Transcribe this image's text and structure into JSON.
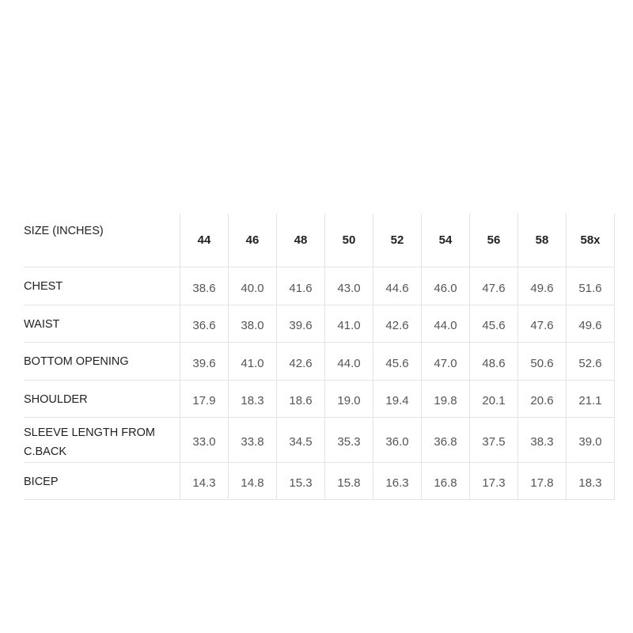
{
  "size_chart": {
    "header_label": "SIZE (INCHES)",
    "sizes": [
      "44",
      "46",
      "48",
      "50",
      "52",
      "54",
      "56",
      "58",
      "58x"
    ],
    "rows": [
      {
        "label": "CHEST",
        "values": [
          "38.6",
          "40.0",
          "41.6",
          "43.0",
          "44.6",
          "46.0",
          "47.6",
          "49.6",
          "51.6"
        ]
      },
      {
        "label": "WAIST",
        "values": [
          "36.6",
          "38.0",
          "39.6",
          "41.0",
          "42.6",
          "44.0",
          "45.6",
          "47.6",
          "49.6"
        ]
      },
      {
        "label": "BOTTOM OPENING",
        "values": [
          "39.6",
          "41.0",
          "42.6",
          "44.0",
          "45.6",
          "47.0",
          "48.6",
          "50.6",
          "52.6"
        ]
      },
      {
        "label": "SHOULDER",
        "values": [
          "17.9",
          "18.3",
          "18.6",
          "19.0",
          "19.4",
          "19.8",
          "20.1",
          "20.6",
          "21.1"
        ]
      },
      {
        "label": "SLEEVE LENGTH FROM C.BACK",
        "values": [
          "33.0",
          "33.8",
          "34.5",
          "35.3",
          "36.0",
          "36.8",
          "37.5",
          "38.3",
          "39.0"
        ]
      },
      {
        "label": "BICEP",
        "values": [
          "14.3",
          "14.8",
          "15.3",
          "15.8",
          "16.3",
          "16.8",
          "17.3",
          "17.8",
          "18.3"
        ]
      }
    ]
  }
}
